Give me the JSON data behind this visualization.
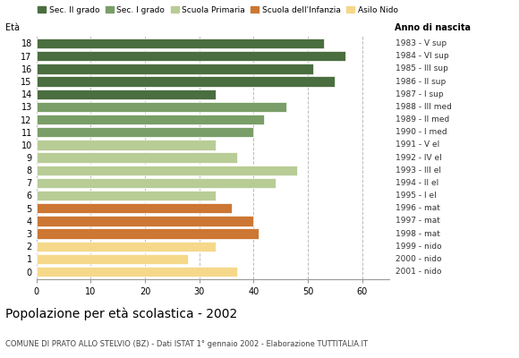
{
  "ages": [
    18,
    17,
    16,
    15,
    14,
    13,
    12,
    11,
    10,
    9,
    8,
    7,
    6,
    5,
    4,
    3,
    2,
    1,
    0
  ],
  "values": [
    53,
    57,
    51,
    55,
    33,
    46,
    42,
    40,
    33,
    37,
    48,
    44,
    33,
    36,
    40,
    41,
    33,
    28,
    37
  ],
  "right_labels": [
    "1983 - V sup",
    "1984 - VI sup",
    "1985 - III sup",
    "1986 - II sup",
    "1987 - I sup",
    "1988 - III med",
    "1989 - II med",
    "1990 - I med",
    "1991 - V el",
    "1992 - IV el",
    "1993 - III el",
    "1994 - II el",
    "1995 - I el",
    "1996 - mat",
    "1997 - mat",
    "1998 - mat",
    "1999 - nido",
    "2000 - nido",
    "2001 - nido"
  ],
  "bar_colors": [
    "#4a6e3f",
    "#4a6e3f",
    "#4a6e3f",
    "#4a6e3f",
    "#4a6e3f",
    "#7a9e67",
    "#7a9e67",
    "#7a9e67",
    "#b8cc96",
    "#b8cc96",
    "#b8cc96",
    "#b8cc96",
    "#b8cc96",
    "#cc7733",
    "#cc7733",
    "#cc7733",
    "#f5d88a",
    "#f5d88a",
    "#f5d88a"
  ],
  "xlim": [
    0,
    65
  ],
  "xticks": [
    0,
    10,
    20,
    30,
    40,
    50,
    60
  ],
  "label_eta": "Età",
  "label_anno": "Anno di nascita",
  "title": "Popolazione per età scolastica - 2002",
  "subtitle": "COMUNE DI PRATO ALLO STELVIO (BZ) - Dati ISTAT 1° gennaio 2002 - Elaborazione TUTTITALIA.IT",
  "legend_labels": [
    "Sec. II grado",
    "Sec. I grado",
    "Scuola Primaria",
    "Scuola dell'Infanzia",
    "Asilo Nido"
  ],
  "legend_colors": [
    "#4a6e3f",
    "#7a9e67",
    "#b8cc96",
    "#cc7733",
    "#f5d88a"
  ],
  "background_color": "#ffffff",
  "bar_edge_color": "#ffffff",
  "gridline_color": "#bbbbbb",
  "gridline_style": "--"
}
